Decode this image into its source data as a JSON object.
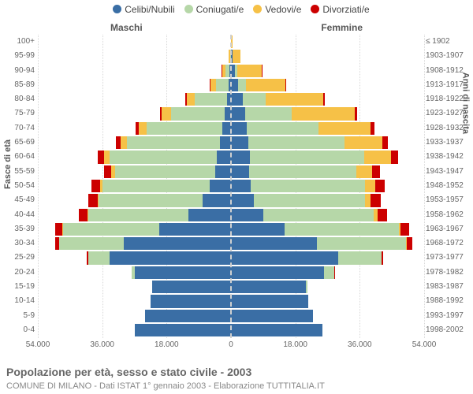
{
  "chart_type": "population-pyramid-stacked",
  "legend": {
    "items": [
      {
        "label": "Celibi/Nubili",
        "color": "#3a6ea5"
      },
      {
        "label": "Coniugati/e",
        "color": "#b6d7a8"
      },
      {
        "label": "Vedovi/e",
        "color": "#f6c147"
      },
      {
        "label": "Divorziati/e",
        "color": "#cc0000"
      }
    ]
  },
  "side_titles": {
    "male": "Maschi",
    "female": "Femmine"
  },
  "axis_titles": {
    "left": "Fasce di età",
    "right": "Anni di nascita"
  },
  "x_axis": {
    "max": 54000,
    "ticks": [
      54000,
      36000,
      18000,
      0,
      18000,
      36000,
      54000
    ],
    "labels": [
      "54.000",
      "36.000",
      "18.000",
      "0",
      "18.000",
      "36.000",
      "54.000"
    ]
  },
  "rows": [
    {
      "age": "100+",
      "birth": "≤ 1902",
      "m": {
        "single": 20,
        "married": 0,
        "widowed": 60,
        "divorced": 0
      },
      "f": {
        "single": 80,
        "married": 0,
        "widowed": 400,
        "divorced": 0
      }
    },
    {
      "age": "95-99",
      "birth": "1903-1907",
      "m": {
        "single": 100,
        "married": 200,
        "widowed": 300,
        "divorced": 0
      },
      "f": {
        "single": 400,
        "married": 100,
        "widowed": 2200,
        "divorced": 0
      }
    },
    {
      "age": "90-94",
      "birth": "1908-1912",
      "m": {
        "single": 400,
        "married": 1200,
        "widowed": 900,
        "divorced": 50
      },
      "f": {
        "single": 1200,
        "married": 600,
        "widowed": 6800,
        "divorced": 100
      }
    },
    {
      "age": "85-89",
      "birth": "1913-1917",
      "m": {
        "single": 700,
        "married": 3600,
        "widowed": 1500,
        "divorced": 100
      },
      "f": {
        "single": 2000,
        "married": 2200,
        "widowed": 11000,
        "divorced": 200
      }
    },
    {
      "age": "80-84",
      "birth": "1918-1922",
      "m": {
        "single": 1200,
        "married": 9000,
        "widowed": 2200,
        "divorced": 300
      },
      "f": {
        "single": 3200,
        "married": 6500,
        "widowed": 16000,
        "divorced": 500
      }
    },
    {
      "age": "75-79",
      "birth": "1923-1927",
      "m": {
        "single": 1800,
        "married": 15000,
        "widowed": 2500,
        "divorced": 500
      },
      "f": {
        "single": 4000,
        "married": 13000,
        "widowed": 17500,
        "divorced": 800
      }
    },
    {
      "age": "70-74",
      "birth": "1928-1932",
      "m": {
        "single": 2500,
        "married": 21000,
        "widowed": 2300,
        "divorced": 900
      },
      "f": {
        "single": 4500,
        "married": 20000,
        "widowed": 14500,
        "divorced": 1200
      }
    },
    {
      "age": "65-69",
      "birth": "1933-1937",
      "m": {
        "single": 3000,
        "married": 26000,
        "widowed": 1900,
        "divorced": 1300
      },
      "f": {
        "single": 4800,
        "married": 27000,
        "widowed": 10500,
        "divorced": 1600
      }
    },
    {
      "age": "60-64",
      "birth": "1938-1942",
      "m": {
        "single": 4000,
        "married": 30000,
        "widowed": 1400,
        "divorced": 1800
      },
      "f": {
        "single": 5200,
        "married": 32000,
        "widowed": 7500,
        "divorced": 2000
      }
    },
    {
      "age": "55-59",
      "birth": "1943-1947",
      "m": {
        "single": 4500,
        "married": 28000,
        "widowed": 900,
        "divorced": 2000
      },
      "f": {
        "single": 5000,
        "married": 30000,
        "widowed": 4500,
        "divorced": 2200
      }
    },
    {
      "age": "50-54",
      "birth": "1948-1952",
      "m": {
        "single": 6000,
        "married": 30000,
        "widowed": 600,
        "divorced": 2400
      },
      "f": {
        "single": 5500,
        "married": 32000,
        "widowed": 2800,
        "divorced": 2600
      }
    },
    {
      "age": "45-49",
      "birth": "1953-1957",
      "m": {
        "single": 8000,
        "married": 29000,
        "widowed": 350,
        "divorced": 2500
      },
      "f": {
        "single": 6500,
        "married": 31000,
        "widowed": 1600,
        "divorced": 2800
      }
    },
    {
      "age": "40-44",
      "birth": "1958-1962",
      "m": {
        "single": 12000,
        "married": 28000,
        "widowed": 200,
        "divorced": 2400
      },
      "f": {
        "single": 9000,
        "married": 31000,
        "widowed": 900,
        "divorced": 2700
      }
    },
    {
      "age": "35-39",
      "birth": "1963-1967",
      "m": {
        "single": 20000,
        "married": 27000,
        "widowed": 100,
        "divorced": 2000
      },
      "f": {
        "single": 15000,
        "married": 32000,
        "widowed": 450,
        "divorced": 2300
      }
    },
    {
      "age": "30-34",
      "birth": "1968-1972",
      "m": {
        "single": 30000,
        "married": 18000,
        "widowed": 50,
        "divorced": 1000
      },
      "f": {
        "single": 24000,
        "married": 25000,
        "widowed": 200,
        "divorced": 1400
      }
    },
    {
      "age": "25-29",
      "birth": "1973-1977",
      "m": {
        "single": 34000,
        "married": 6000,
        "widowed": 0,
        "divorced": 300
      },
      "f": {
        "single": 30000,
        "married": 12000,
        "widowed": 80,
        "divorced": 500
      }
    },
    {
      "age": "20-24",
      "birth": "1978-1982",
      "m": {
        "single": 27000,
        "married": 800,
        "widowed": 0,
        "divorced": 50
      },
      "f": {
        "single": 26000,
        "married": 2800,
        "widowed": 0,
        "divorced": 120
      }
    },
    {
      "age": "15-19",
      "birth": "1983-1987",
      "m": {
        "single": 22000,
        "married": 50,
        "widowed": 0,
        "divorced": 0
      },
      "f": {
        "single": 21000,
        "married": 300,
        "widowed": 0,
        "divorced": 0
      }
    },
    {
      "age": "10-14",
      "birth": "1988-1992",
      "m": {
        "single": 22500,
        "married": 0,
        "widowed": 0,
        "divorced": 0
      },
      "f": {
        "single": 21500,
        "married": 0,
        "widowed": 0,
        "divorced": 0
      }
    },
    {
      "age": "5-9",
      "birth": "1993-1997",
      "m": {
        "single": 24000,
        "married": 0,
        "widowed": 0,
        "divorced": 0
      },
      "f": {
        "single": 23000,
        "married": 0,
        "widowed": 0,
        "divorced": 0
      }
    },
    {
      "age": "0-4",
      "birth": "1998-2002",
      "m": {
        "single": 27000,
        "married": 0,
        "widowed": 0,
        "divorced": 0
      },
      "f": {
        "single": 25500,
        "married": 0,
        "widowed": 0,
        "divorced": 0
      }
    }
  ],
  "title": "Popolazione per età, sesso e stato civile - 2003",
  "subtitle": "COMUNE DI MILANO - Dati ISTAT 1° gennaio 2003 - Elaborazione TUTTITALIA.IT",
  "background_color": "#ffffff",
  "grid_color": "#d8d8d8"
}
